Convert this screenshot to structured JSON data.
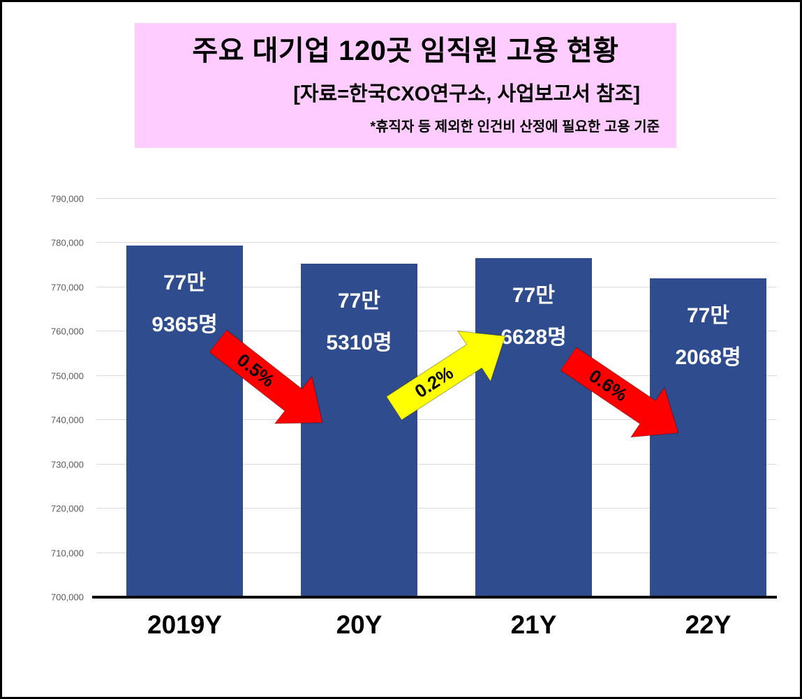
{
  "header": {
    "title": "주요 대기업 120곳 임직원 고용 현황",
    "subtitle": "[자료=한국CXO연구소, 사업보고서 참조]",
    "note": "*휴직자 등 제외한 인건비 산정에 필요한 고용 기준",
    "background": "#ffccff"
  },
  "chart_data": {
    "type": "bar",
    "title": "주요 대기업 120곳 임직원 고용 현황",
    "categories": [
      "2019Y",
      "20Y",
      "21Y",
      "22Y"
    ],
    "values": [
      779365,
      775310,
      776628,
      772068
    ],
    "bar_labels": [
      [
        "77만",
        "9365명"
      ],
      [
        "77만",
        "5310명"
      ],
      [
        "77만",
        "6628명"
      ],
      [
        "77만",
        "2068명"
      ]
    ],
    "ylim": [
      700000,
      790000
    ],
    "ytick_step": 10000,
    "yticks": [
      "700,000",
      "710,000",
      "720,000",
      "730,000",
      "740,000",
      "750,000",
      "760,000",
      "770,000",
      "780,000",
      "790,000"
    ],
    "grid": true,
    "legend": "none",
    "bar_color": "#2e4c8e",
    "annotations": [
      {
        "label": "0.5%",
        "direction": "down",
        "color": "#ff0000"
      },
      {
        "label": "0.2%",
        "direction": "up",
        "color": "#ffff00"
      },
      {
        "label": "0.6%",
        "direction": "down",
        "color": "#ff0000"
      }
    ]
  }
}
